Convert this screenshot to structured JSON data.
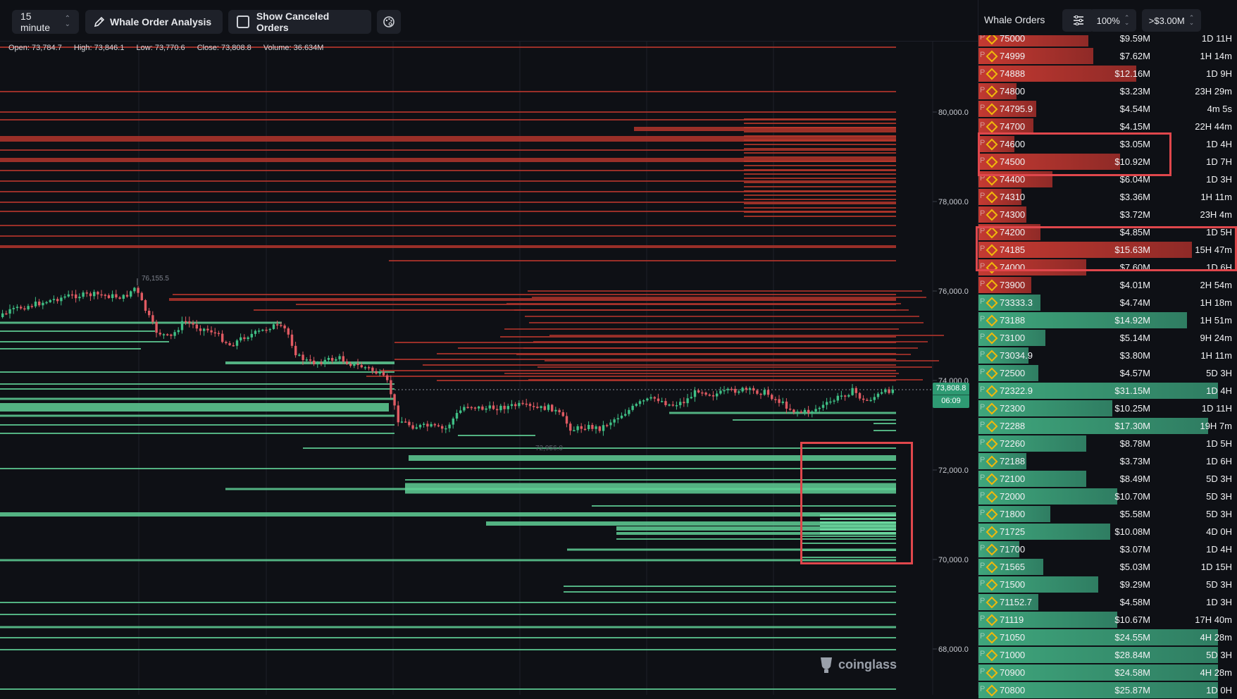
{
  "toolbar": {
    "interval": "15 minute",
    "whale_analysis_label": "Whale Order Analysis",
    "show_canceled_label": "Show Canceled Orders",
    "show_canceled_checked": false
  },
  "ohlc": {
    "open": "Open: 73,784.7",
    "high": "High: 73,846.1",
    "low": "Low: 73,770.6",
    "close": "Close: 73,808.8",
    "volume": "Volume: 36.634M"
  },
  "chart": {
    "price_axis": [
      "80,000.0",
      "78,000.0",
      "76,000.0",
      "74,000.0",
      "72,000.0",
      "70,000.0",
      "68,000.0"
    ],
    "current_price": "73,808.8",
    "countdown": "06:09",
    "high_marker": "76,155.5",
    "low_marker": "72,956.0",
    "watermark": "coinglass",
    "colors": {
      "sell_wall": "#c0392b",
      "buy_wall": "#5fcf95",
      "candle_up": "#3fbf85",
      "candle_down": "#e05a62"
    }
  },
  "panel": {
    "title": "Whale Orders",
    "zoom": "100%",
    "threshold": ">$3.00M",
    "rows": [
      {
        "tag": "P",
        "price": "75000",
        "amount": "$9.59M",
        "age": "1D 11H",
        "side": "sell",
        "fill": 0.46
      },
      {
        "tag": "P",
        "price": "74999",
        "amount": "$7.62M",
        "age": "1H 14m",
        "side": "sell",
        "fill": 0.48
      },
      {
        "tag": "P",
        "price": "74888",
        "amount": "$12.16M",
        "age": "1D 9H",
        "side": "sell",
        "fill": 0.66
      },
      {
        "tag": "P",
        "price": "74800",
        "amount": "$3.23M",
        "age": "23H 29m",
        "side": "sell",
        "fill": 0.16
      },
      {
        "tag": "P",
        "price": "74795.9",
        "amount": "$4.54M",
        "age": "4m 5s",
        "side": "sell",
        "fill": 0.24
      },
      {
        "tag": "P",
        "price": "74700",
        "amount": "$4.15M",
        "age": "22H 44m",
        "side": "sell",
        "fill": 0.23
      },
      {
        "tag": "P",
        "price": "74600",
        "amount": "$3.05M",
        "age": "1D 4H",
        "side": "sell",
        "fill": 0.15
      },
      {
        "tag": "P",
        "price": "74500",
        "amount": "$10.92M",
        "age": "1D 7H",
        "side": "sell",
        "fill": 0.59
      },
      {
        "tag": "P",
        "price": "74400",
        "amount": "$6.04M",
        "age": "1D 3H",
        "side": "sell",
        "fill": 0.31
      },
      {
        "tag": "P",
        "price": "74310",
        "amount": "$3.36M",
        "age": "1H 11m",
        "side": "sell",
        "fill": 0.18
      },
      {
        "tag": "P",
        "price": "74300",
        "amount": "$3.72M",
        "age": "23H 4m",
        "side": "sell",
        "fill": 0.2
      },
      {
        "tag": "P",
        "price": "74200",
        "amount": "$4.85M",
        "age": "1D 5H",
        "side": "sell",
        "fill": 0.26
      },
      {
        "tag": "P",
        "price": "74185",
        "amount": "$15.63M",
        "age": "15H 47m",
        "side": "sell",
        "fill": 0.89
      },
      {
        "tag": "P",
        "price": "74000",
        "amount": "$7.60M",
        "age": "1D 6H",
        "side": "sell",
        "fill": 0.45
      },
      {
        "tag": "P",
        "price": "73900",
        "amount": "$4.01M",
        "age": "2H 54m",
        "side": "sell",
        "fill": 0.22
      },
      {
        "tag": "P",
        "price": "73333.3",
        "amount": "$4.74M",
        "age": "1H 18m",
        "side": "buy",
        "fill": 0.26
      },
      {
        "tag": "P",
        "price": "73188",
        "amount": "$14.92M",
        "age": "1H 51m",
        "side": "buy",
        "fill": 0.87
      },
      {
        "tag": "P",
        "price": "73100",
        "amount": "$5.14M",
        "age": "9H 24m",
        "side": "buy",
        "fill": 0.28
      },
      {
        "tag": "P",
        "price": "73034.9",
        "amount": "$3.80M",
        "age": "1H 11m",
        "side": "buy",
        "fill": 0.21
      },
      {
        "tag": "P",
        "price": "72500",
        "amount": "$4.57M",
        "age": "5D 3H",
        "side": "buy",
        "fill": 0.25
      },
      {
        "tag": "P",
        "price": "72322.9",
        "amount": "$31.15M",
        "age": "1D 4H",
        "side": "buy",
        "fill": 1.0
      },
      {
        "tag": "P",
        "price": "72300",
        "amount": "$10.25M",
        "age": "1D 11H",
        "side": "buy",
        "fill": 0.56
      },
      {
        "tag": "P",
        "price": "72288",
        "amount": "$17.30M",
        "age": "19H 7m",
        "side": "buy",
        "fill": 0.96
      },
      {
        "tag": "P",
        "price": "72260",
        "amount": "$8.78M",
        "age": "1D 5H",
        "side": "buy",
        "fill": 0.45
      },
      {
        "tag": "P",
        "price": "72188",
        "amount": "$3.73M",
        "age": "1D 6H",
        "side": "buy",
        "fill": 0.2
      },
      {
        "tag": "P",
        "price": "72100",
        "amount": "$8.49M",
        "age": "5D 3H",
        "side": "buy",
        "fill": 0.45
      },
      {
        "tag": "P",
        "price": "72000",
        "amount": "$10.70M",
        "age": "5D 3H",
        "side": "buy",
        "fill": 0.58
      },
      {
        "tag": "P",
        "price": "71800",
        "amount": "$5.58M",
        "age": "5D 3H",
        "side": "buy",
        "fill": 0.3
      },
      {
        "tag": "P",
        "price": "71725",
        "amount": "$10.08M",
        "age": "4D 0H",
        "side": "buy",
        "fill": 0.55
      },
      {
        "tag": "P",
        "price": "71700",
        "amount": "$3.07M",
        "age": "1D 4H",
        "side": "buy",
        "fill": 0.17
      },
      {
        "tag": "P",
        "price": "71565",
        "amount": "$5.03M",
        "age": "1D 15H",
        "side": "buy",
        "fill": 0.27
      },
      {
        "tag": "P",
        "price": "71500",
        "amount": "$9.29M",
        "age": "5D 3H",
        "side": "buy",
        "fill": 0.5
      },
      {
        "tag": "P",
        "price": "71152.7",
        "amount": "$4.58M",
        "age": "1D 3H",
        "side": "buy",
        "fill": 0.25
      },
      {
        "tag": "P",
        "price": "71119",
        "amount": "$10.67M",
        "age": "17H 40m",
        "side": "buy",
        "fill": 0.58
      },
      {
        "tag": "P",
        "price": "71050",
        "amount": "$24.55M",
        "age": "4H 28m",
        "side": "buy",
        "fill": 1.0
      },
      {
        "tag": "P",
        "price": "71000",
        "amount": "$28.84M",
        "age": "5D 3H",
        "side": "buy",
        "fill": 1.0
      },
      {
        "tag": "P",
        "price": "70900",
        "amount": "$24.58M",
        "age": "4H 28m",
        "side": "buy",
        "fill": 1.0
      },
      {
        "tag": "P",
        "price": "70800",
        "amount": "$25.87M",
        "age": "1D 0H",
        "side": "buy",
        "fill": 1.0
      }
    ]
  }
}
